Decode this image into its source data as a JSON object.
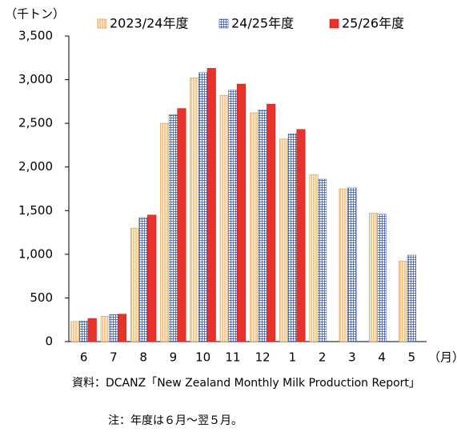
{
  "chart_data": {
    "type": "bar",
    "y_label": "（千トン）",
    "x_unit": "（月）",
    "categories": [
      "6",
      "7",
      "8",
      "9",
      "10",
      "11",
      "12",
      "1",
      "2",
      "3",
      "4",
      "5"
    ],
    "series": [
      {
        "name": "2023/24年度",
        "color": "#f7c98a",
        "values": [
          230,
          290,
          1300,
          2500,
          3020,
          2820,
          2620,
          2320,
          1910,
          1750,
          1470,
          920
        ]
      },
      {
        "name": "24/25年度",
        "color": "#3b5ba9",
        "values": [
          235,
          310,
          1420,
          2600,
          3080,
          2880,
          2650,
          2380,
          1860,
          1760,
          1460,
          990
        ]
      },
      {
        "name": "25/26年度",
        "color": "#e8322a",
        "values": [
          265,
          315,
          1450,
          2670,
          3130,
          2950,
          2720,
          2430,
          null,
          null,
          null,
          null
        ]
      }
    ],
    "ylim": [
      0,
      3500
    ],
    "yticks": [
      0,
      {
        "value": 500,
        "label": "500"
      },
      {
        "value": 1000,
        "label": "1,000"
      },
      {
        "value": 1500,
        "label": "1,500"
      },
      {
        "value": 2000,
        "label": "2,000"
      },
      {
        "value": 2500,
        "label": "2,500"
      },
      {
        "value": 3000,
        "label": "3,000"
      },
      {
        "value": 3500,
        "label": "3,500"
      }
    ],
    "source": "資料：DCANZ「New Zealand Monthly Milk Production Report」",
    "note": "注：年度は６月～翌５月。"
  }
}
